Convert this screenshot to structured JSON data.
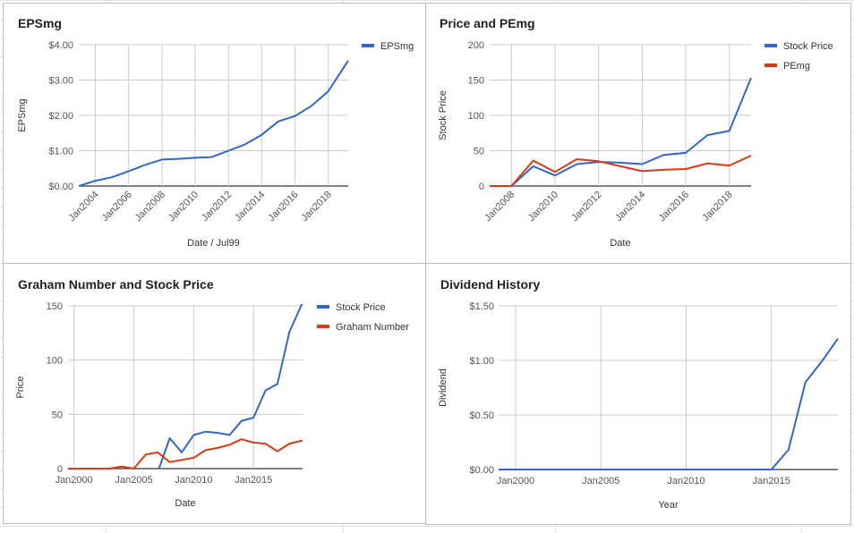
{
  "colors": {
    "blue": "#3366cc",
    "red": "#dc3912",
    "grid": "#cccccc",
    "axis": "#333333"
  },
  "chart_data": [
    {
      "id": "eps",
      "type": "line",
      "title": "EPSmg",
      "xlabel": "Date / Jul99",
      "ylabel": "EPSmg",
      "xlim": [
        2003,
        2019.2
      ],
      "ylim": [
        0,
        4
      ],
      "x_ticks": [
        2004,
        2006,
        2008,
        2010,
        2012,
        2014,
        2016,
        2018
      ],
      "x_tick_labels": [
        "Jan2004",
        "Jan2006",
        "Jan2008",
        "Jan2010",
        "Jan2012",
        "Jan2014",
        "Jan2016",
        "Jan2018"
      ],
      "y_ticks": [
        0,
        1,
        2,
        3,
        4
      ],
      "y_tick_labels": [
        "$0.00",
        "$1.00",
        "$2.00",
        "$3.00",
        "$4.00"
      ],
      "legend": "right",
      "series": [
        {
          "name": "EPSmg",
          "color": "#3366cc",
          "x": [
            2003,
            2004,
            2005,
            2006,
            2007,
            2008,
            2009,
            2010,
            2011,
            2012,
            2013,
            2014,
            2015,
            2016,
            2017,
            2018,
            2019.2
          ],
          "y": [
            0.0,
            0.15,
            0.25,
            0.42,
            0.6,
            0.75,
            0.77,
            0.8,
            0.82,
            1.0,
            1.18,
            1.45,
            1.83,
            1.98,
            2.27,
            2.68,
            3.55
          ]
        }
      ]
    },
    {
      "id": "price",
      "type": "line",
      "title": "Price and PEmg",
      "xlabel": "Date",
      "ylabel": "Stock Price",
      "xlim": [
        2007,
        2019
      ],
      "ylim": [
        0,
        200
      ],
      "x_ticks": [
        2008,
        2010,
        2012,
        2014,
        2016,
        2018
      ],
      "x_tick_labels": [
        "Jan2008",
        "Jan2010",
        "Jan2012",
        "Jan2014",
        "Jan2016",
        "Jan2018"
      ],
      "y_ticks": [
        0,
        50,
        100,
        150,
        200
      ],
      "y_tick_labels": [
        "0",
        "50",
        "100",
        "150",
        "200"
      ],
      "legend": "right",
      "series": [
        {
          "name": "Stock Price",
          "color": "#3366cc",
          "x": [
            2007,
            2008,
            2009,
            2010,
            2011,
            2012,
            2013,
            2014,
            2015,
            2016,
            2017,
            2018,
            2019
          ],
          "y": [
            0,
            0,
            28,
            15,
            31,
            34,
            33,
            31,
            44,
            47,
            72,
            78,
            153
          ]
        },
        {
          "name": "PEmg",
          "color": "#dc3912",
          "x": [
            2007,
            2008,
            2009,
            2010,
            2011,
            2012,
            2013,
            2014,
            2015,
            2016,
            2017,
            2018,
            2019
          ],
          "y": [
            0,
            0,
            36,
            20,
            38,
            35,
            28,
            21,
            23,
            24,
            32,
            29,
            43
          ]
        }
      ]
    },
    {
      "id": "graham",
      "type": "line",
      "title": "Graham Number and Stock Price",
      "xlabel": "Date",
      "ylabel": "Price",
      "xlim": [
        1999.5,
        2019.1
      ],
      "ylim": [
        0,
        150
      ],
      "x_ticks": [
        2000,
        2005,
        2010,
        2015
      ],
      "x_tick_labels": [
        "Jan2000",
        "Jan2005",
        "Jan2010",
        "Jan2015"
      ],
      "y_ticks": [
        0,
        50,
        100,
        150
      ],
      "y_tick_labels": [
        "0",
        "50",
        "100",
        "150"
      ],
      "legend": "right",
      "series": [
        {
          "name": "Stock Price",
          "color": "#3366cc",
          "x": [
            2007.1,
            2008,
            2009,
            2010,
            2011,
            2012,
            2013,
            2014,
            2015,
            2016,
            2017,
            2018,
            2019.1
          ],
          "y": [
            0,
            28,
            15,
            31,
            34,
            33,
            31,
            44,
            47,
            72,
            78,
            126,
            153
          ]
        },
        {
          "name": "Graham Number",
          "color": "#dc3912",
          "x": [
            1999.5,
            2000,
            2001,
            2002,
            2003,
            2004,
            2005,
            2006,
            2007,
            2008,
            2009,
            2010,
            2011,
            2012,
            2013,
            2014,
            2015,
            2016,
            2017,
            2018,
            2019.1
          ],
          "y": [
            0,
            0,
            0,
            0,
            0,
            2,
            0,
            13,
            15,
            6,
            8,
            10,
            17,
            19,
            22,
            27,
            24,
            23,
            16,
            23,
            26
          ]
        }
      ]
    },
    {
      "id": "dividend",
      "type": "line",
      "title": "Dividend History",
      "xlabel": "Year",
      "ylabel": "Dividend",
      "xlim": [
        1999,
        2018.9
      ],
      "ylim": [
        0,
        1.5
      ],
      "x_ticks": [
        2000,
        2005,
        2010,
        2015
      ],
      "x_tick_labels": [
        "Jan2000",
        "Jan2005",
        "Jan2010",
        "Jan2015"
      ],
      "y_ticks": [
        0,
        0.5,
        1,
        1.5
      ],
      "y_tick_labels": [
        "$0.00",
        "$0.50",
        "$1.00",
        "$1.50"
      ],
      "legend": "none",
      "series": [
        {
          "name": "",
          "color": "#3366cc",
          "x": [
            1999,
            2015,
            2016,
            2017,
            2018,
            2018.9
          ],
          "y": [
            0,
            0,
            0.18,
            0.8,
            1.0,
            1.2
          ]
        }
      ]
    }
  ]
}
